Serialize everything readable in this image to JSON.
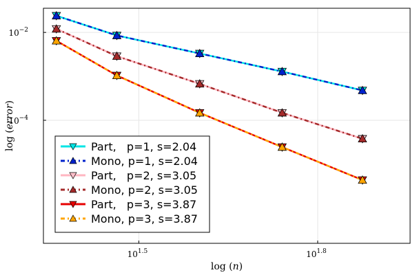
{
  "chart_data": {
    "type": "line",
    "scale": {
      "x": "log10",
      "y": "log10"
    },
    "xlim_log10": [
      1.34,
      1.955
    ],
    "ylim_log10": [
      -6.8,
      -1.45
    ],
    "x_log10": [
      1.3617,
      1.4631,
      1.6021,
      1.7404,
      1.8751
    ],
    "x": [
      23,
      29,
      40,
      55,
      75
    ],
    "x_ticks": [
      {
        "value_log10": 1.5,
        "base": "10",
        "exp": "1.5"
      },
      {
        "value_log10": 1.8,
        "base": "10",
        "exp": "1.8"
      }
    ],
    "y_ticks": [
      {
        "value_log10": -2,
        "base": "10",
        "exp": "−2"
      },
      {
        "value_log10": -4,
        "base": "10",
        "exp": "−4"
      }
    ],
    "xlabel": {
      "prefix": "log",
      "var": "n"
    },
    "ylabel": {
      "prefix": "log",
      "var": "error"
    },
    "grid": true,
    "legend_position": "bottom-left",
    "series": [
      {
        "name": "Part,   p=1, s=2.04",
        "color": "#00e5e5",
        "dash": "",
        "marker": "down",
        "marker_fill": "#00e5e5",
        "y_log10": [
          -1.62,
          -2.07,
          -2.48,
          -2.89,
          -3.32
        ]
      },
      {
        "name": "Mono, p=1, s=2.04",
        "color": "#0022cc",
        "dash": "6,4,2,4",
        "marker": "up",
        "marker_fill": "#0022cc",
        "y_log10": [
          -1.62,
          -2.07,
          -2.48,
          -2.89,
          -3.32
        ]
      },
      {
        "name": "Part,   p=2, s=3.05",
        "color": "#ffb6c1",
        "dash": "",
        "marker": "down",
        "marker_fill": "#ffc0cb",
        "y_log10": [
          -1.92,
          -2.54,
          -3.17,
          -3.83,
          -4.42
        ]
      },
      {
        "name": "Mono, p=2, s=3.05",
        "color": "#a52a2a",
        "dash": "6,4,2,4",
        "marker": "up",
        "marker_fill": "#a52a2a",
        "y_log10": [
          -1.92,
          -2.54,
          -3.17,
          -3.83,
          -4.42
        ]
      },
      {
        "name": "Part,   p=3, s=3.87",
        "color": "#e60000",
        "dash": "",
        "marker": "down",
        "marker_fill": "#e60000",
        "y_log10": [
          -2.19,
          -2.98,
          -3.83,
          -4.61,
          -5.36
        ]
      },
      {
        "name": "Mono, p=3, s=3.87",
        "color": "#ffa500",
        "dash": "6,4,2,4",
        "marker": "up",
        "marker_fill": "#ffa500",
        "y_log10": [
          -2.19,
          -2.98,
          -3.83,
          -4.61,
          -5.36
        ]
      }
    ]
  }
}
